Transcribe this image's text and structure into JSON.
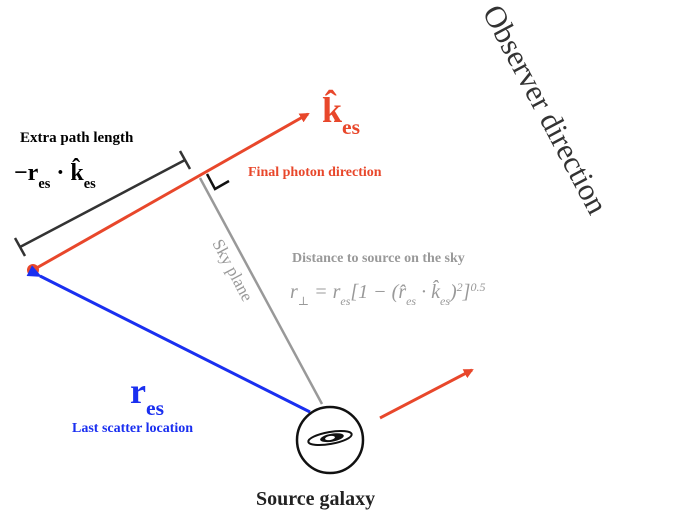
{
  "observer_label": "Observer direction",
  "k_label": [
    {
      "base": "k̂",
      "sub": "es"
    }
  ],
  "extra_path": {
    "title": "Extra path length",
    "formula": [
      {
        "base": "−r",
        "sub": "es"
      },
      {
        "base": " · k̂",
        "sub": "es"
      }
    ]
  },
  "final_photon": "Final photon direction",
  "sky_plane": "Sky plane",
  "distance": {
    "title": "Distance to source on the sky",
    "formula": [
      {
        "base": "r",
        "sub": "⊥"
      },
      {
        "base": " = r",
        "sub": "es"
      },
      {
        "base": "[1 − (r̂",
        "sub": "es"
      },
      {
        "base": " · k̂",
        "sub": "es"
      },
      {
        "base": ")",
        "sup": "2"
      },
      {
        "base": "]",
        "sup": "0.5"
      }
    ]
  },
  "r_label": [
    {
      "base": "r",
      "sub": "es"
    }
  ],
  "last_scatter": "Last scatter location",
  "source": "Source galaxy"
}
